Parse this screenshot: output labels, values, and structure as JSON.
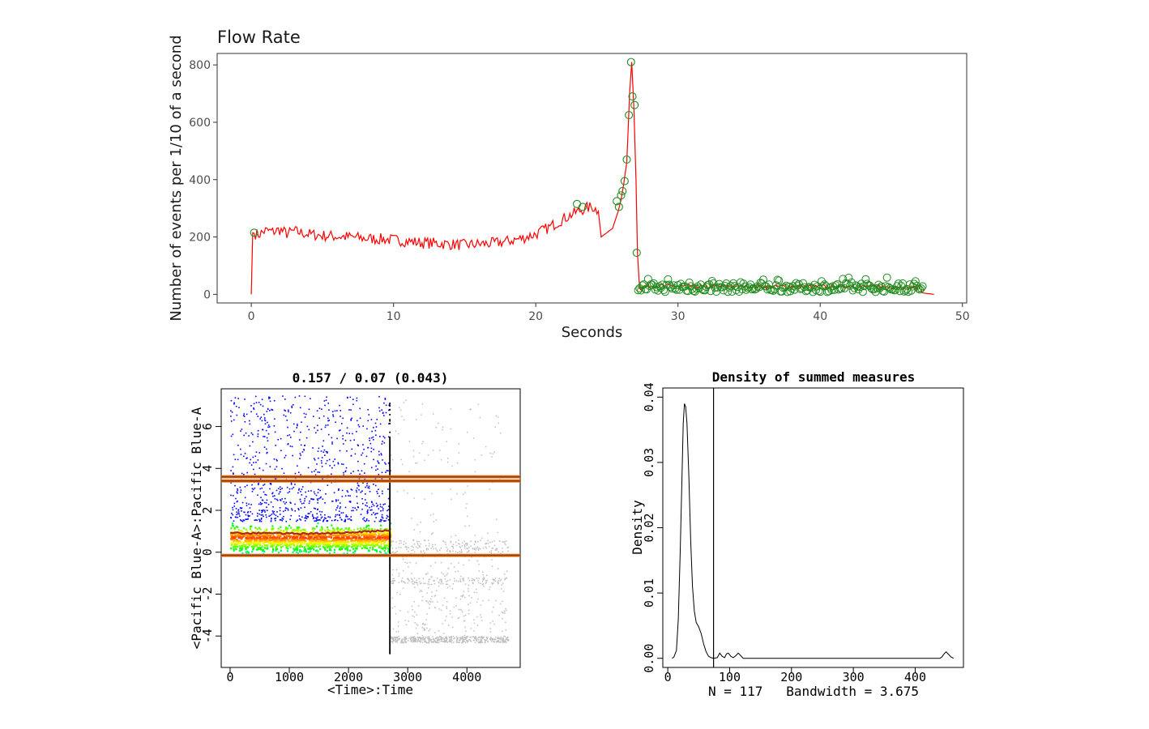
{
  "chart_data": [
    {
      "type": "line",
      "title": "Flow Rate",
      "xlabel": "Seconds",
      "ylabel": "Number of events per 1/10 of a second",
      "xlim": [
        -2.4,
        50.3
      ],
      "ylim": [
        -30,
        840
      ],
      "xticks": [
        0,
        10,
        20,
        30,
        40,
        50
      ],
      "yticks": [
        0,
        200,
        400,
        600,
        800
      ],
      "grid": false,
      "series": [
        {
          "color": "#ff0000",
          "points": [
            [
              0,
              0
            ],
            [
              0.1,
              215
            ],
            [
              0.5,
              208
            ],
            [
              1,
              222
            ],
            [
              1.5,
              218
            ],
            [
              2,
              225
            ],
            [
              2.5,
              212
            ],
            [
              3,
              220
            ],
            [
              4,
              210
            ],
            [
              5,
              205
            ],
            [
              6,
              202
            ],
            [
              7,
              200
            ],
            [
              8,
              195
            ],
            [
              9,
              193
            ],
            [
              10,
              190
            ],
            [
              11,
              185
            ],
            [
              12,
              180
            ],
            [
              13,
              178
            ],
            [
              14,
              175
            ],
            [
              15,
              172
            ],
            [
              16,
              175
            ],
            [
              17,
              178
            ],
            [
              18,
              185
            ],
            [
              19,
              195
            ],
            [
              20,
              210
            ],
            [
              21,
              235
            ],
            [
              22,
              265
            ],
            [
              23,
              290
            ],
            [
              23.5,
              300
            ],
            [
              24,
              305
            ],
            [
              24.4,
              290
            ],
            [
              24.6,
              200
            ],
            [
              25,
              215
            ],
            [
              25.4,
              230
            ],
            [
              25.8,
              290
            ],
            [
              26,
              330
            ],
            [
              26.2,
              390
            ],
            [
              26.4,
              460
            ],
            [
              26.6,
              700
            ],
            [
              26.75,
              810
            ],
            [
              26.9,
              650
            ],
            [
              27.05,
              400
            ],
            [
              27.15,
              145
            ],
            [
              27.3,
              20
            ],
            [
              28,
              30
            ],
            [
              30,
              28
            ],
            [
              32,
              27
            ],
            [
              34,
              28
            ],
            [
              36,
              27
            ],
            [
              38,
              28
            ],
            [
              40,
              27
            ],
            [
              42,
              28
            ],
            [
              44,
              27
            ],
            [
              46,
              25
            ],
            [
              47,
              22
            ],
            [
              47.2,
              5
            ],
            [
              48,
              0
            ]
          ]
        }
      ],
      "flagged_points": {
        "marker": "open-circle",
        "color": "#1e8c1e",
        "spike": [
          [
            0.2,
            215
          ],
          [
            22.9,
            315
          ],
          [
            23.3,
            305
          ],
          [
            25.7,
            325
          ],
          [
            25.85,
            305
          ],
          [
            26,
            345
          ],
          [
            26.1,
            360
          ],
          [
            26.25,
            395
          ],
          [
            26.4,
            470
          ],
          [
            26.55,
            625
          ],
          [
            26.7,
            810
          ],
          [
            26.8,
            690
          ],
          [
            26.95,
            660
          ],
          [
            27.1,
            145
          ]
        ],
        "tail_x_range": [
          27.2,
          47.3
        ],
        "tail_y_range": [
          8,
          60
        ]
      }
    },
    {
      "type": "scatter",
      "title": "0.157 / 0.07 (0.043)",
      "xlabel": "<Time>:Time",
      "ylabel": "<Pacific Blue-A>:Pacific Blue-A",
      "xlim": [
        -150,
        4900
      ],
      "ylim": [
        -5.5,
        7.8
      ],
      "xticks": [
        0,
        1000,
        2000,
        3000,
        4000
      ],
      "yticks": [
        -4,
        -2,
        0,
        2,
        4,
        6
      ],
      "cutoff_x": 2700,
      "kept_region": {
        "x_range": [
          0,
          2700
        ],
        "y_range": [
          -0.3,
          7.5
        ],
        "density_band_y": [
          -0.2,
          1.5
        ],
        "density_coloring": [
          "#0000ff",
          "#00ffff",
          "#00ff00",
          "#ffff00",
          "#ff0000"
        ]
      },
      "removed_region": {
        "x_range": [
          2700,
          4700
        ],
        "y_range": [
          -4.3,
          7.3
        ],
        "color": "#bebebe"
      },
      "median_trace": {
        "color": "#b22222",
        "points": [
          [
            0,
            0.95
          ],
          [
            300,
            0.9
          ],
          [
            600,
            0.92
          ],
          [
            900,
            0.9
          ],
          [
            1200,
            0.88
          ],
          [
            1500,
            0.9
          ],
          [
            1800,
            0.92
          ],
          [
            2100,
            0.95
          ],
          [
            2400,
            1.0
          ],
          [
            2700,
            1.05
          ]
        ]
      },
      "hlines": {
        "color": "#8b4513",
        "outline": "#ff7f24",
        "y": [
          3.6,
          3.4,
          -0.15
        ]
      }
    },
    {
      "type": "line",
      "title": "Density of summed measures",
      "xlabel": "N = 117   Bandwidth = 3.675",
      "ylabel": "Density",
      "xlim": [
        -8,
        478
      ],
      "ylim": [
        -0.0014,
        0.0414
      ],
      "xticks": [
        0,
        100,
        200,
        300,
        400
      ],
      "yticks": [
        0.0,
        0.01,
        0.02,
        0.03,
        0.04
      ],
      "vline_x": 74,
      "series": [
        {
          "color": "#000000",
          "points": [
            [
              7,
              0
            ],
            [
              10,
              0.0002
            ],
            [
              14,
              0.0012
            ],
            [
              17,
              0.006
            ],
            [
              20,
              0.016
            ],
            [
              23,
              0.028
            ],
            [
              25,
              0.036
            ],
            [
              27,
              0.039
            ],
            [
              29,
              0.0385
            ],
            [
              31,
              0.036
            ],
            [
              34,
              0.028
            ],
            [
              37,
              0.018
            ],
            [
              40,
              0.011
            ],
            [
              43,
              0.0072
            ],
            [
              46,
              0.0055
            ],
            [
              50,
              0.0048
            ],
            [
              54,
              0.0038
            ],
            [
              58,
              0.0022
            ],
            [
              62,
              0.001
            ],
            [
              66,
              0.0003
            ],
            [
              70,
              0.0001
            ],
            [
              74,
              0
            ],
            [
              80,
              0.0001
            ],
            [
              84,
              0.0008
            ],
            [
              88,
              0.0003
            ],
            [
              92,
              0.0001
            ],
            [
              95,
              0.0007
            ],
            [
              98,
              0.0008
            ],
            [
              102,
              0.0003
            ],
            [
              106,
              0.0001
            ],
            [
              110,
              0.0004
            ],
            [
              114,
              0.0008
            ],
            [
              118,
              0.0004
            ],
            [
              122,
              0
            ],
            [
              200,
              0
            ],
            [
              300,
              0
            ],
            [
              440,
              0
            ],
            [
              443,
              0.0002
            ],
            [
              446,
              0.0006
            ],
            [
              450,
              0.001
            ],
            [
              454,
              0.0006
            ],
            [
              458,
              0.0002
            ],
            [
              462,
              0
            ]
          ]
        }
      ]
    }
  ]
}
